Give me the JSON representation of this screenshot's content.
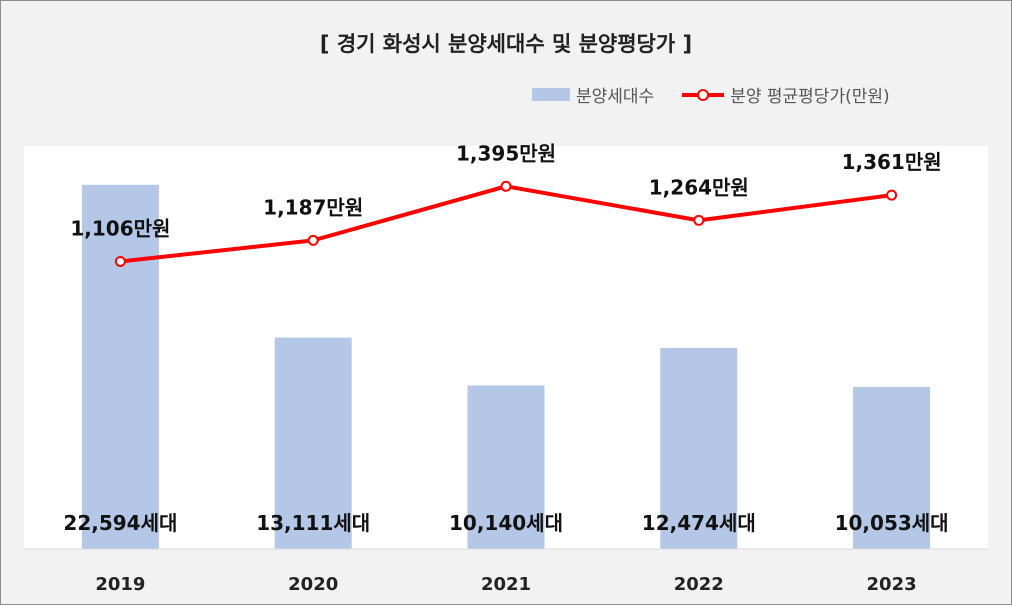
{
  "chart_data": {
    "type": "bar+line",
    "title": "[ 경기 화성시 분양세대수 및 분양평당가 ]",
    "categories": [
      "2019",
      "2020",
      "2021",
      "2022",
      "2023"
    ],
    "series": [
      {
        "name": "분양세대수",
        "type": "bar",
        "values": [
          22594,
          13111,
          10140,
          12474,
          10053
        ],
        "labels": [
          "22,594세대",
          "13,111세대",
          "10,140세대",
          "12,474세대",
          "10,053세대"
        ],
        "color": "#b4c7e7",
        "axis_range": [
          0,
          25000
        ]
      },
      {
        "name": "분양 평균평당가(만원)",
        "type": "line",
        "values": [
          1106,
          1187,
          1395,
          1264,
          1361
        ],
        "labels": [
          "1,106만원",
          "1,187만원",
          "1,395만원",
          "1,264만원",
          "1,361만원"
        ],
        "color": "#ff0000",
        "axis_range": [
          0,
          1550
        ]
      }
    ],
    "legend": "top-right",
    "grid": false
  }
}
